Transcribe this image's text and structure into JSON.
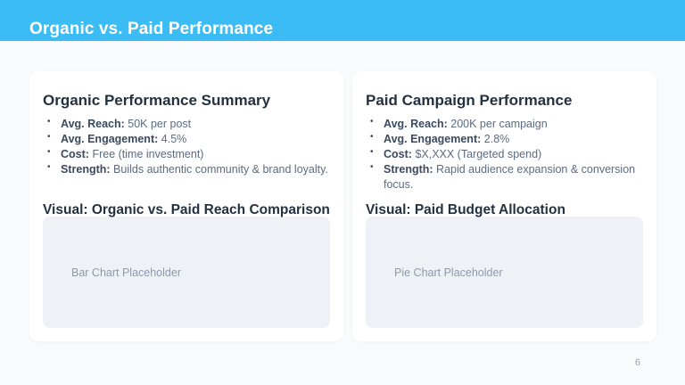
{
  "header": {
    "title": "Organic vs. Paid Performance"
  },
  "cards": [
    {
      "title": "Organic Performance Summary",
      "bullets": [
        {
          "label": "Avg. Reach:",
          "value": "50K per post"
        },
        {
          "label": "Avg. Engagement:",
          "value": "4.5%"
        },
        {
          "label": "Cost:",
          "value": "Free (time investment)"
        },
        {
          "label": "Strength:",
          "value": "Builds authentic community & brand loyalty."
        }
      ],
      "visual_title": "Visual: Organic vs. Paid Reach Comparison",
      "placeholder_label": "Bar Chart Placeholder"
    },
    {
      "title": "Paid Campaign Performance",
      "bullets": [
        {
          "label": "Avg. Reach:",
          "value": "200K per campaign"
        },
        {
          "label": "Avg. Engagement:",
          "value": "2.8%"
        },
        {
          "label": "Cost:",
          "value": "$X,XXX (Targeted spend)"
        },
        {
          "label": "Strength:",
          "value": "Rapid audience expansion & conversion focus."
        }
      ],
      "visual_title": "Visual: Paid Budget Allocation",
      "placeholder_label": "Pie Chart Placeholder"
    }
  ],
  "footer": {
    "page_number": "6"
  },
  "theme": {
    "header_bg": "#3BBCF4",
    "page_bg": "#F8FAFC",
    "card_bg": "#FFFFFF",
    "placeholder_bg": "#EEF2F7",
    "heading_color": "#243140",
    "label_color": "#3B4A61",
    "value_color": "#5C6B80",
    "muted_color": "#8D99AB"
  }
}
